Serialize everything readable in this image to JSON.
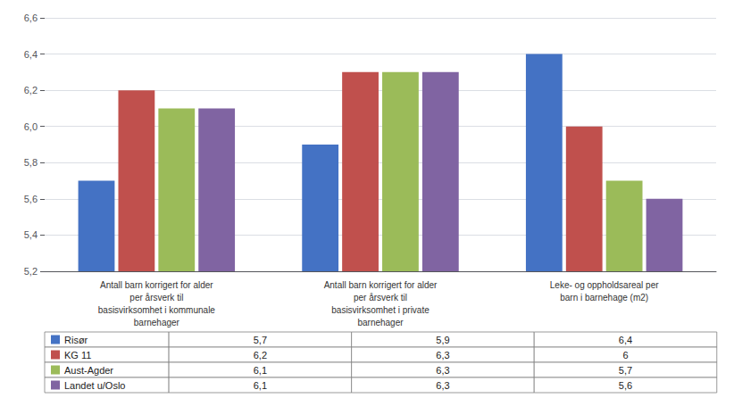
{
  "chart_data": {
    "type": "bar",
    "categories": [
      "Antall barn korrigert for alder\nper årsverk til\nbasisvirksomhet i kommunale\nbarnehager",
      "Antall barn korrigert for alder\nper årsverk til\nbasisvirksomhet i private\nbarnehager",
      "Leke- og oppholdsareal per\nbarn i barnehage (m2)"
    ],
    "series": [
      {
        "name": "Risør",
        "color": "#4472C4",
        "values": [
          5.7,
          5.9,
          6.4
        ],
        "value_labels": [
          "5,7",
          "5,9",
          "6,4"
        ]
      },
      {
        "name": "KG 11",
        "color": "#C0504D",
        "values": [
          6.2,
          6.3,
          6.0
        ],
        "value_labels": [
          "6,2",
          "6,3",
          "6"
        ]
      },
      {
        "name": "Aust-Agder",
        "color": "#9BBB59",
        "values": [
          6.1,
          6.3,
          5.7
        ],
        "value_labels": [
          "6,1",
          "6,3",
          "5,7"
        ]
      },
      {
        "name": "Landet u/Oslo",
        "color": "#8064A2",
        "values": [
          6.1,
          6.3,
          5.6
        ],
        "value_labels": [
          "6,1",
          "6,3",
          "5,6"
        ]
      }
    ],
    "ylim": [
      5.2,
      6.6
    ],
    "yticks": [
      {
        "value": 5.2,
        "label": "5,2"
      },
      {
        "value": 5.4,
        "label": "5,4"
      },
      {
        "value": 5.6,
        "label": "5,6"
      },
      {
        "value": 5.8,
        "label": "5,8"
      },
      {
        "value": 6.0,
        "label": "6,0"
      },
      {
        "value": 6.2,
        "label": "6,2"
      },
      {
        "value": 6.4,
        "label": "6,4"
      },
      {
        "value": 6.6,
        "label": "6,6"
      }
    ],
    "grid": true
  }
}
